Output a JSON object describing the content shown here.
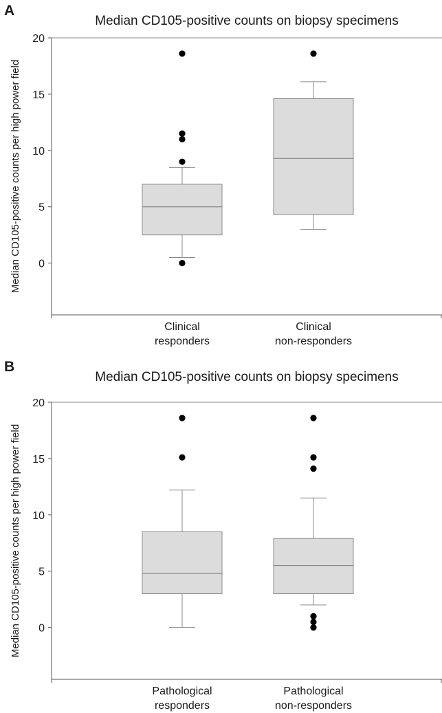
{
  "chart_data": [
    {
      "type": "box",
      "panel_label": "A",
      "title": "Median CD105-positive counts on biopsy specimens",
      "ylabel": "Median CD105-positive counts per high power field",
      "xlabel": "",
      "ylim": [
        -4.6,
        20
      ],
      "yticks": [
        0,
        5,
        10,
        15,
        20
      ],
      "grid": false,
      "box_color": "#dcdcdc",
      "line_color": "#8a8a8a",
      "outlier_color": "#000000",
      "categories": [
        [
          "Clinical",
          "responders"
        ],
        [
          "Clinical",
          "non-responders"
        ]
      ],
      "boxes": [
        {
          "whisker_low": 0.5,
          "q1": 2.5,
          "median": 5.0,
          "q3": 7.0,
          "whisker_high": 8.5,
          "outliers": [
            0,
            9,
            11,
            11.5,
            18.6
          ]
        },
        {
          "whisker_low": 3.0,
          "q1": 4.3,
          "median": 9.3,
          "q3": 14.6,
          "whisker_high": 16.1,
          "outliers": [
            18.6
          ]
        }
      ]
    },
    {
      "type": "box",
      "panel_label": "B",
      "title": "Median CD105-positive counts on biopsy specimens",
      "ylabel": "Median CD105-positive counts per high power field",
      "xlabel": "",
      "ylim": [
        -4.6,
        20
      ],
      "yticks": [
        0,
        5,
        10,
        15,
        20
      ],
      "grid": false,
      "box_color": "#dcdcdc",
      "line_color": "#8a8a8a",
      "outlier_color": "#000000",
      "categories": [
        [
          "Pathological",
          "responders"
        ],
        [
          "Pathological",
          "non-responders"
        ]
      ],
      "boxes": [
        {
          "whisker_low": 0.0,
          "q1": 3.0,
          "median": 4.8,
          "q3": 8.5,
          "whisker_high": 12.2,
          "outliers": [
            15.1,
            18.6
          ]
        },
        {
          "whisker_low": 2.0,
          "q1": 3.0,
          "median": 5.5,
          "q3": 7.9,
          "whisker_high": 11.5,
          "outliers": [
            0,
            0.5,
            1.0,
            14.1,
            15.1,
            18.6
          ]
        }
      ]
    }
  ]
}
